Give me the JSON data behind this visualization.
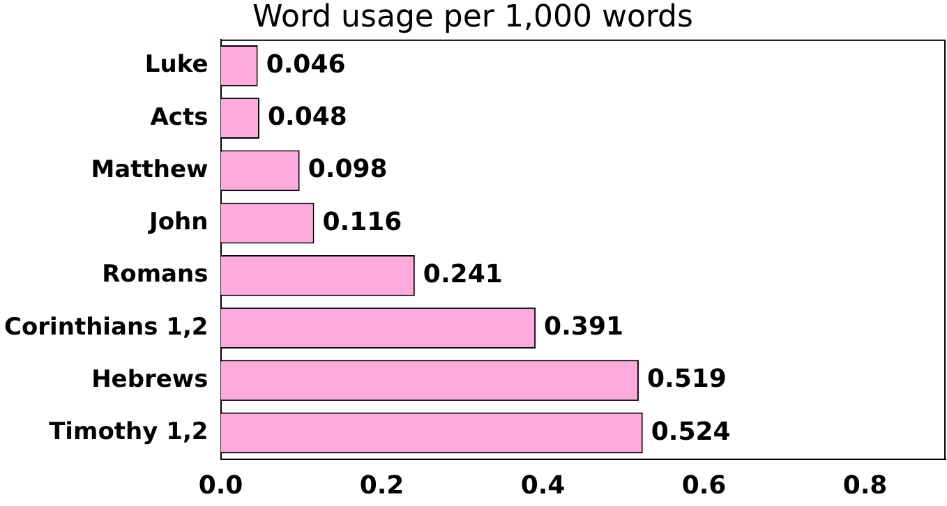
{
  "chart_data": {
    "type": "bar",
    "orientation": "horizontal",
    "title": "Word usage per 1,000 words",
    "categories": [
      "Luke",
      "Acts",
      "Matthew",
      "John",
      "Romans",
      "Corinthians 1,2",
      "Hebrews",
      "Timothy 1,2"
    ],
    "values": [
      0.046,
      0.048,
      0.098,
      0.116,
      0.241,
      0.391,
      0.519,
      0.524
    ],
    "color": "#ffaadd",
    "xlim": [
      0,
      0.9
    ],
    "xticks": [
      {
        "value": 0,
        "label": "0.0"
      },
      {
        "value": 0.2,
        "label": "0.2"
      },
      {
        "value": 0.4,
        "label": "0.4"
      },
      {
        "value": 0.6,
        "label": "0.6"
      },
      {
        "value": 0.8,
        "label": "0.8"
      }
    ],
    "data_labels": true,
    "grid": false,
    "legend": false
  }
}
